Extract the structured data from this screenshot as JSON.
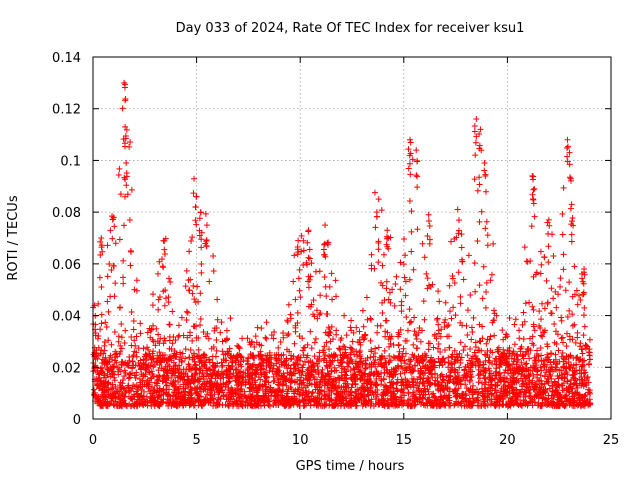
{
  "chart_data": {
    "type": "scatter",
    "title": "Day 033 of 2024, Rate Of TEC Index for receiver ksu1",
    "xlabel": "GPS time / hours",
    "ylabel": "ROTI / TECUs",
    "xlim": [
      0,
      25
    ],
    "ylim": [
      0,
      0.14
    ],
    "xticks": [
      "0",
      "5",
      "10",
      "15",
      "20",
      "25"
    ],
    "yticks": [
      "0",
      "0.02",
      "0.04",
      "0.06",
      "0.08",
      "0.1",
      "0.12",
      "0.14"
    ],
    "grid": true,
    "marker": "+",
    "series_color": "#ff0000",
    "data_extent_hours": [
      0,
      24
    ],
    "baseline_range": [
      0.005,
      0.025
    ],
    "notable_peaks": [
      {
        "x": 1.5,
        "y": 0.13
      },
      {
        "x": 1.55,
        "y": 0.113
      },
      {
        "x": 1.6,
        "y": 0.099
      },
      {
        "x": 0.4,
        "y": 0.07
      },
      {
        "x": 1.0,
        "y": 0.078
      },
      {
        "x": 3.4,
        "y": 0.069
      },
      {
        "x": 5.0,
        "y": 0.086
      },
      {
        "x": 5.2,
        "y": 0.08
      },
      {
        "x": 5.5,
        "y": 0.075
      },
      {
        "x": 9.9,
        "y": 0.069
      },
      {
        "x": 10.4,
        "y": 0.073
      },
      {
        "x": 11.2,
        "y": 0.075
      },
      {
        "x": 13.7,
        "y": 0.08
      },
      {
        "x": 14.2,
        "y": 0.073
      },
      {
        "x": 15.3,
        "y": 0.108
      },
      {
        "x": 15.6,
        "y": 0.104
      },
      {
        "x": 16.2,
        "y": 0.079
      },
      {
        "x": 17.6,
        "y": 0.081
      },
      {
        "x": 18.5,
        "y": 0.116
      },
      {
        "x": 18.7,
        "y": 0.112
      },
      {
        "x": 18.9,
        "y": 0.099
      },
      {
        "x": 21.2,
        "y": 0.094
      },
      {
        "x": 21.3,
        "y": 0.089
      },
      {
        "x": 22.0,
        "y": 0.077
      },
      {
        "x": 22.9,
        "y": 0.108
      },
      {
        "x": 23.0,
        "y": 0.103
      },
      {
        "x": 23.1,
        "y": 0.083
      },
      {
        "x": 23.7,
        "y": 0.058
      }
    ]
  }
}
